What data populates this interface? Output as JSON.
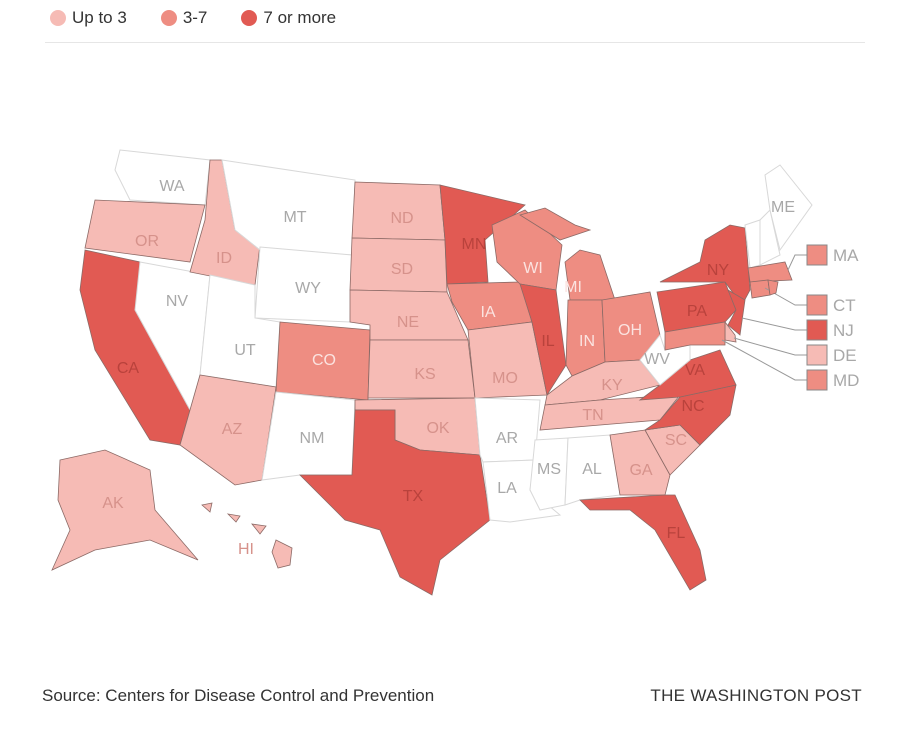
{
  "legend": [
    {
      "label": "Up to 3",
      "color": "#f6bbb5"
    },
    {
      "label": "3-7",
      "color": "#ee8d82"
    },
    {
      "label": "7 or more",
      "color": "#e15a53"
    }
  ],
  "colors": {
    "none": "#ffffff",
    "low": "#f6bbb5",
    "mid": "#ee8d82",
    "high": "#e15a53",
    "border": "#dddddd"
  },
  "states": [
    {
      "code": "WA",
      "label": "WA",
      "cat": "none"
    },
    {
      "code": "OR",
      "label": "OR",
      "cat": "low"
    },
    {
      "code": "CA",
      "label": "CA",
      "cat": "high"
    },
    {
      "code": "NV",
      "label": "NV",
      "cat": "none"
    },
    {
      "code": "ID",
      "label": "ID",
      "cat": "low"
    },
    {
      "code": "MT",
      "label": "MT",
      "cat": "none"
    },
    {
      "code": "WY",
      "label": "WY",
      "cat": "none"
    },
    {
      "code": "UT",
      "label": "UT",
      "cat": "none"
    },
    {
      "code": "CO",
      "label": "CO",
      "cat": "mid"
    },
    {
      "code": "AZ",
      "label": "AZ",
      "cat": "low"
    },
    {
      "code": "NM",
      "label": "NM",
      "cat": "none"
    },
    {
      "code": "ND",
      "label": "ND",
      "cat": "low"
    },
    {
      "code": "SD",
      "label": "SD",
      "cat": "low"
    },
    {
      "code": "NE",
      "label": "NE",
      "cat": "low"
    },
    {
      "code": "KS",
      "label": "KS",
      "cat": "low"
    },
    {
      "code": "OK",
      "label": "OK",
      "cat": "low"
    },
    {
      "code": "TX",
      "label": "TX",
      "cat": "high"
    },
    {
      "code": "MN",
      "label": "MN",
      "cat": "high"
    },
    {
      "code": "IA",
      "label": "IA",
      "cat": "mid"
    },
    {
      "code": "MO",
      "label": "MO",
      "cat": "low"
    },
    {
      "code": "AR",
      "label": "AR",
      "cat": "none"
    },
    {
      "code": "LA",
      "label": "LA",
      "cat": "none"
    },
    {
      "code": "WI",
      "label": "WI",
      "cat": "mid"
    },
    {
      "code": "IL",
      "label": "IL",
      "cat": "high"
    },
    {
      "code": "MI",
      "label": "MI",
      "cat": "mid"
    },
    {
      "code": "IN",
      "label": "IN",
      "cat": "mid"
    },
    {
      "code": "OH",
      "label": "OH",
      "cat": "mid"
    },
    {
      "code": "KY",
      "label": "KY",
      "cat": "low"
    },
    {
      "code": "TN",
      "label": "TN",
      "cat": "low"
    },
    {
      "code": "MS",
      "label": "MS",
      "cat": "none"
    },
    {
      "code": "AL",
      "label": "AL",
      "cat": "none"
    },
    {
      "code": "GA",
      "label": "GA",
      "cat": "low"
    },
    {
      "code": "SC",
      "label": "SC",
      "cat": "low"
    },
    {
      "code": "FL",
      "label": "FL",
      "cat": "high"
    },
    {
      "code": "NC",
      "label": "NC",
      "cat": "high"
    },
    {
      "code": "VA",
      "label": "VA",
      "cat": "high"
    },
    {
      "code": "WV",
      "label": "WV",
      "cat": "none"
    },
    {
      "code": "PA",
      "label": "PA",
      "cat": "high"
    },
    {
      "code": "NY",
      "label": "NY",
      "cat": "high"
    },
    {
      "code": "NJ",
      "label": "NJ",
      "cat": "high"
    },
    {
      "code": "DE",
      "label": "DE",
      "cat": "low"
    },
    {
      "code": "MD",
      "label": "MD",
      "cat": "mid"
    },
    {
      "code": "VT",
      "label": "",
      "cat": "none"
    },
    {
      "code": "NH",
      "label": "",
      "cat": "none"
    },
    {
      "code": "ME",
      "label": "ME",
      "cat": "none"
    },
    {
      "code": "MA",
      "label": "MA",
      "cat": "mid"
    },
    {
      "code": "CT",
      "label": "CT",
      "cat": "mid"
    },
    {
      "code": "RI",
      "label": "",
      "cat": "mid"
    },
    {
      "code": "AK",
      "label": "AK",
      "cat": "low"
    },
    {
      "code": "HI",
      "label": "HI",
      "cat": "low"
    }
  ],
  "footer": {
    "source": "Source: Centers for Disease Control and Prevention",
    "credit": "THE WASHINGTON POST"
  }
}
